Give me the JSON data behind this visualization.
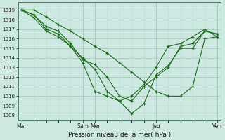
{
  "title": "Pression niveau de la mer( hPa )",
  "bg_color": "#cce8e0",
  "grid_major_color": "#aaccc4",
  "grid_minor_color": "#c0dcd6",
  "line_color": "#1e6b1e",
  "ylim": [
    1007.5,
    1019.8
  ],
  "yticks": [
    1008,
    1009,
    1010,
    1011,
    1012,
    1013,
    1014,
    1015,
    1016,
    1017,
    1018,
    1019
  ],
  "n_points": 17,
  "day_positions": [
    0,
    5,
    6,
    11,
    16
  ],
  "day_labels": [
    "Mar",
    "Sam",
    "Mer",
    "Jeu",
    "Ven"
  ],
  "series": [
    [
      1019.0,
      1019.0,
      1018.3,
      1017.5,
      1016.8,
      1016.0,
      1015.2,
      1014.5,
      1013.5,
      1012.5,
      1011.5,
      1010.5,
      1010.0,
      1010.0,
      1011.0,
      1016.0,
      1016.2
    ],
    [
      1019.0,
      1018.5,
      1017.3,
      1016.8,
      1015.5,
      1013.8,
      1013.3,
      1012.0,
      1010.0,
      1009.5,
      1011.0,
      1012.0,
      1013.0,
      1015.2,
      1015.5,
      1016.8,
      1016.5
    ],
    [
      1019.0,
      1018.2,
      1016.8,
      1016.2,
      1015.2,
      1014.0,
      1012.8,
      1010.5,
      1009.5,
      1010.0,
      1011.2,
      1013.0,
      1015.2,
      1015.5,
      1016.2,
      1017.0,
      1016.2
    ],
    [
      1019.0,
      1018.5,
      1017.0,
      1016.5,
      1015.2,
      1013.5,
      1010.5,
      1010.0,
      1009.5,
      1008.2,
      1009.2,
      1012.2,
      1013.2,
      1015.0,
      1015.0,
      1016.8,
      1016.5
    ]
  ]
}
